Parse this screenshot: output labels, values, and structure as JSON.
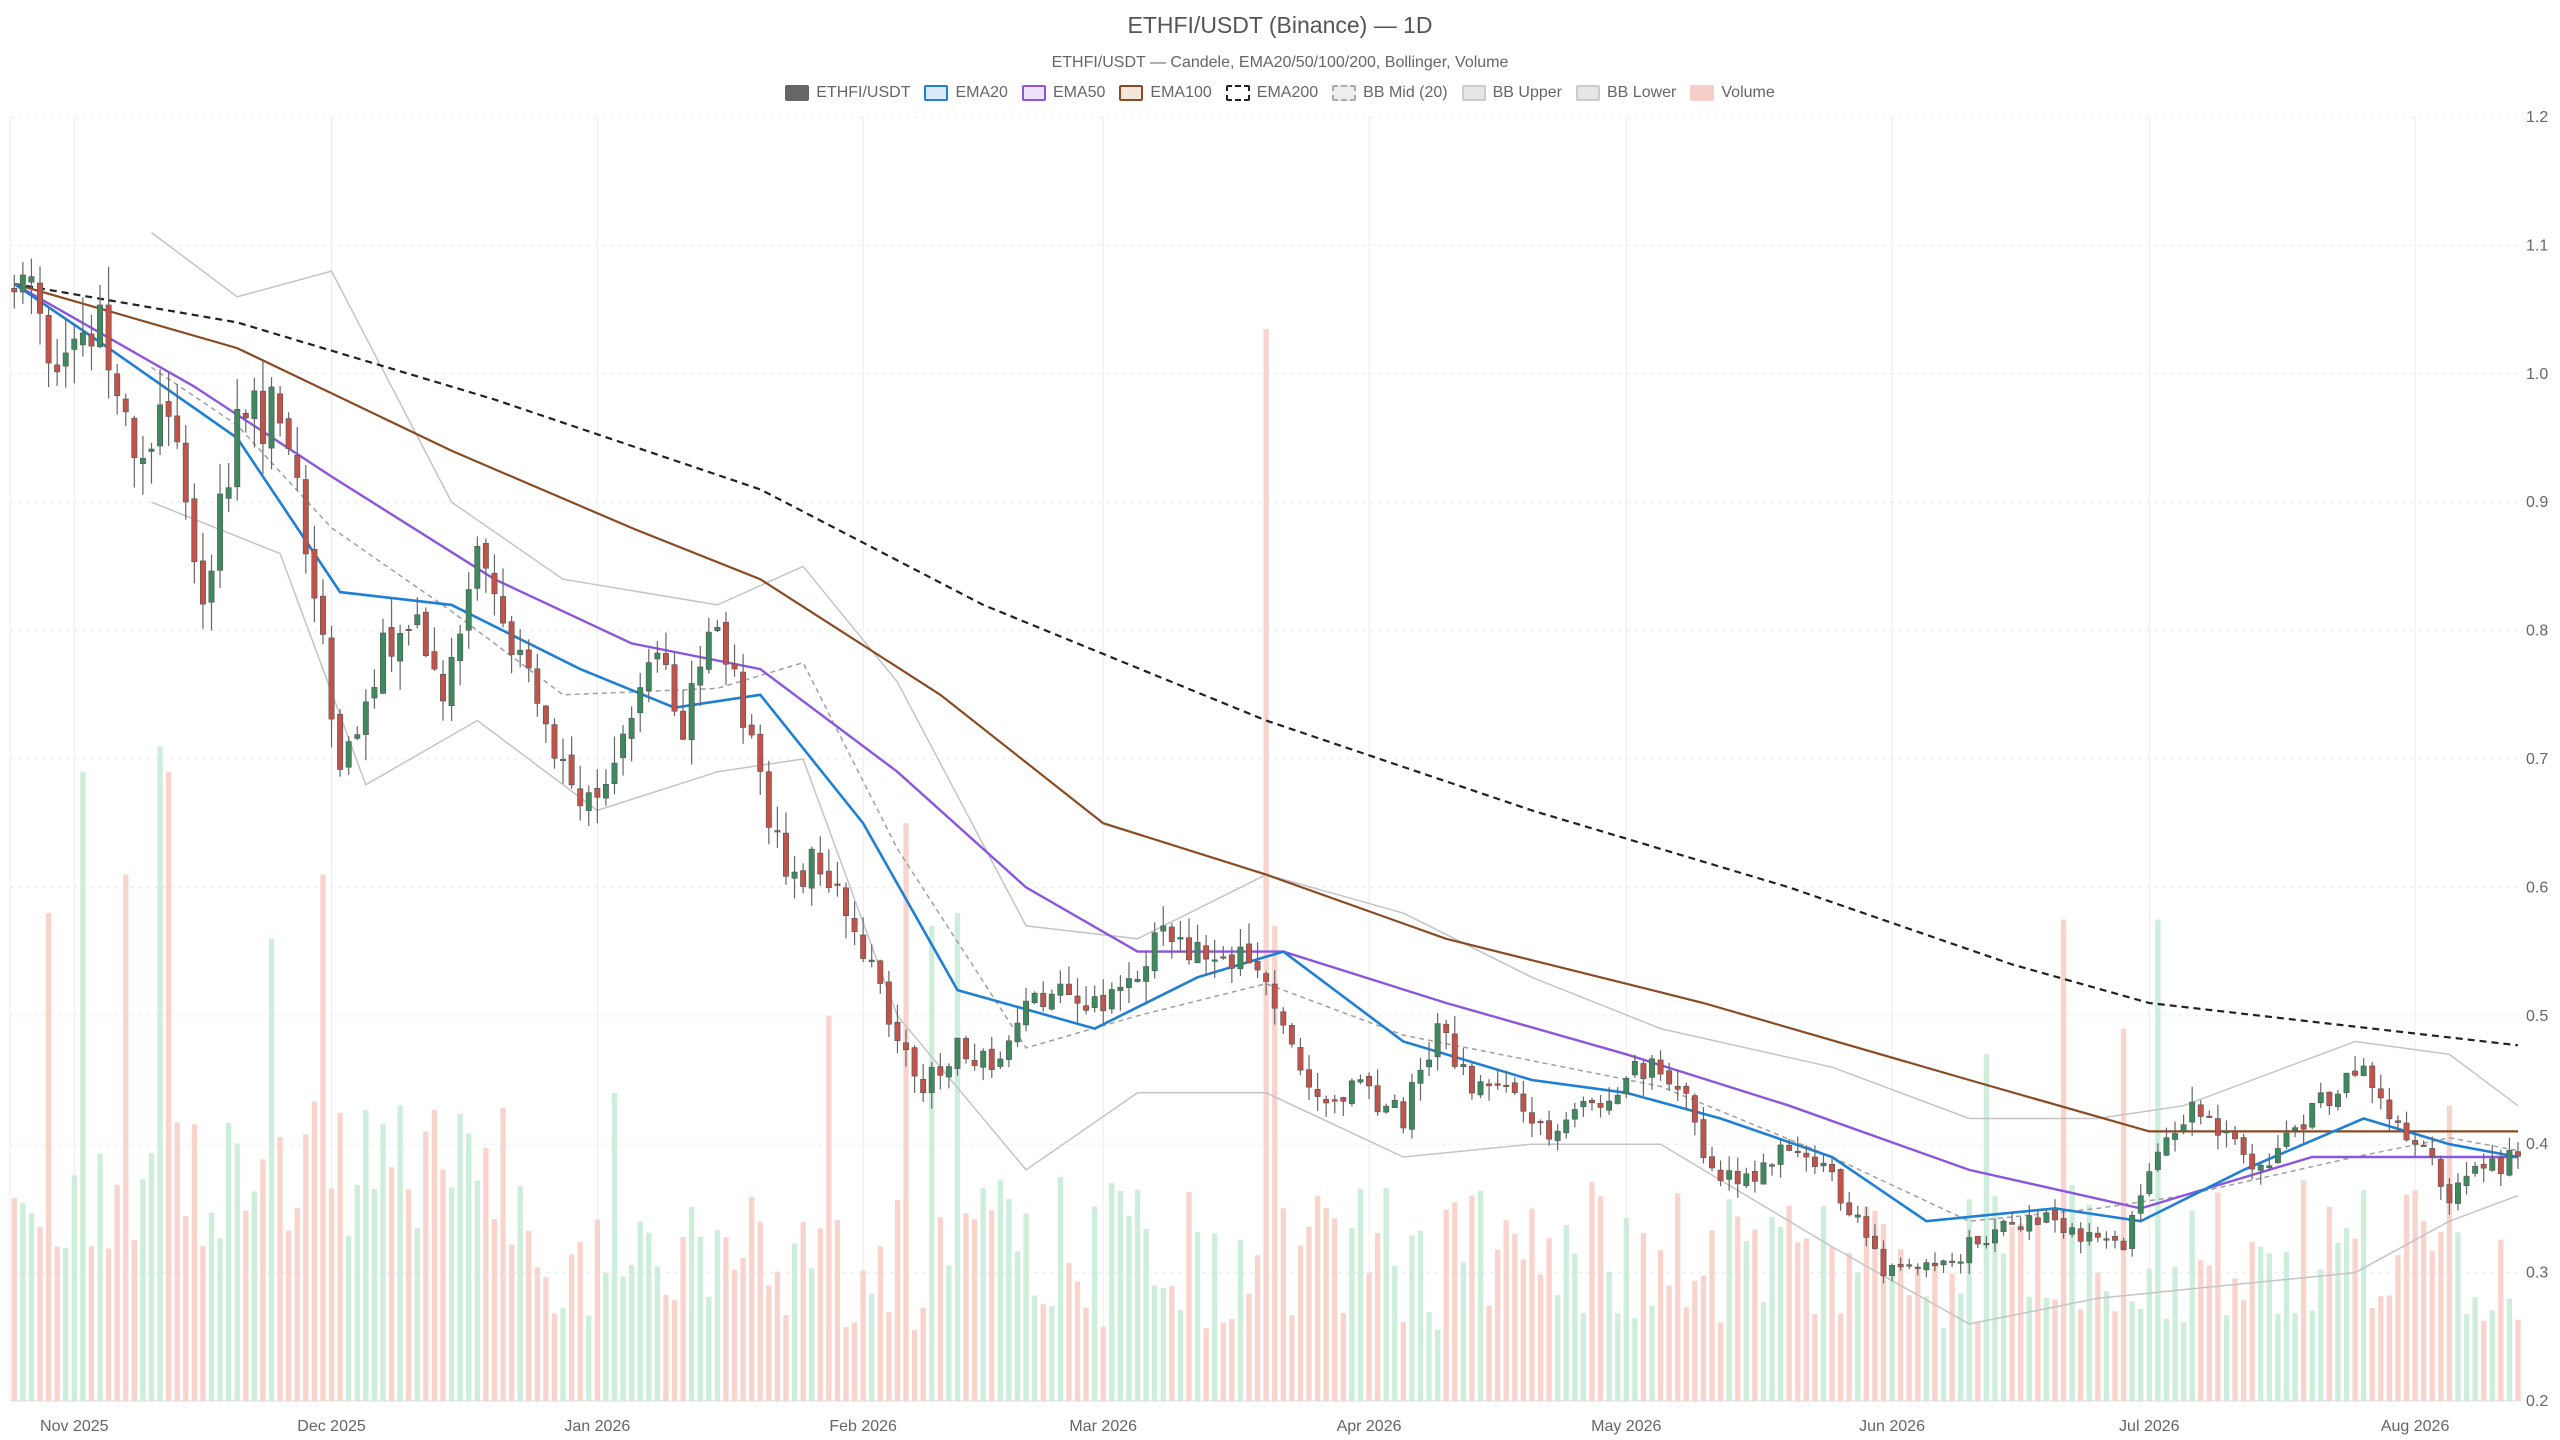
{
  "title": "ETHFI/USDT (Binance) — 1D",
  "subtitle": "ETHFI/USDT — Candele, EMA20/50/100/200, Bollinger, Volume",
  "legend": [
    {
      "label": "ETHFI/USDT",
      "fill": "#666666",
      "border": "#666666",
      "dashed": false
    },
    {
      "label": "EMA20",
      "fill": "#dbeafb",
      "border": "#1e7fd6",
      "dashed": false
    },
    {
      "label": "EMA50",
      "fill": "#ede3fb",
      "border": "#8b55e0",
      "dashed": false
    },
    {
      "label": "EMA100",
      "fill": "#f3e6da",
      "border": "#8a4a22",
      "dashed": false
    },
    {
      "label": "EMA200",
      "fill": "#ffffff",
      "border": "#222222",
      "dashed": true
    },
    {
      "label": "BB Mid (20)",
      "fill": "#eeeeee",
      "border": "#aaaaaa",
      "dashed": true
    },
    {
      "label": "BB Upper",
      "fill": "#e6e6e6",
      "border": "#cccccc",
      "dashed": false
    },
    {
      "label": "BB Lower",
      "fill": "#e6e6e6",
      "border": "#cccccc",
      "dashed": false
    },
    {
      "label": "Volume",
      "fill": "#f8cfc8",
      "border": "#f8cfc8",
      "dashed": false
    }
  ],
  "colors": {
    "up": "#3d8a5f",
    "down": "#c0544a",
    "volume_up": "#c8ecd6",
    "volume_down": "#f8cfc8",
    "ema20": "#1e7fd6",
    "ema50": "#8b55e0",
    "ema100": "#8a4a22",
    "ema200": "#222222",
    "bb": "#c4c4c4",
    "bb_mid": "#a0a0a0",
    "grid": "#ececec"
  },
  "chart_data": {
    "type": "candlestick",
    "title": "ETHFI/USDT (Binance) — 1D",
    "x_start": "2025-10-25",
    "x_end": "2026-08-13",
    "ylim": [
      0.2,
      1.2
    ],
    "y_ticks": [
      0.2,
      0.3,
      0.4,
      0.5,
      0.6,
      0.7,
      0.8,
      0.9,
      1.0,
      1.1,
      1.2
    ],
    "x_ticks": [
      {
        "date": "2025-11-01",
        "label": "Nov 2025"
      },
      {
        "date": "2025-12-01",
        "label": "Dec 2025"
      },
      {
        "date": "2026-01-01",
        "label": "Jan 2026"
      },
      {
        "date": "2026-02-01",
        "label": "Feb 2026"
      },
      {
        "date": "2026-03-01",
        "label": "Mar 2026"
      },
      {
        "date": "2026-04-01",
        "label": "Apr 2026"
      },
      {
        "date": "2026-05-01",
        "label": "May 2026"
      },
      {
        "date": "2026-06-01",
        "label": "Jun 2026"
      },
      {
        "date": "2026-07-01",
        "label": "Jul 2026"
      },
      {
        "date": "2026-08-01",
        "label": "Aug 2026"
      }
    ],
    "price_anchors": [
      [
        "2025-10-25",
        1.07
      ],
      [
        "2025-10-30",
        1.02
      ],
      [
        "2025-11-04",
        1.04
      ],
      [
        "2025-11-08",
        0.95
      ],
      [
        "2025-11-12",
        0.98
      ],
      [
        "2025-11-16",
        0.83
      ],
      [
        "2025-11-20",
        0.96
      ],
      [
        "2025-11-24",
        0.97
      ],
      [
        "2025-11-28",
        0.88
      ],
      [
        "2025-12-02",
        0.69
      ],
      [
        "2025-12-06",
        0.77
      ],
      [
        "2025-12-10",
        0.82
      ],
      [
        "2025-12-14",
        0.76
      ],
      [
        "2025-12-18",
        0.85
      ],
      [
        "2025-12-22",
        0.79
      ],
      [
        "2025-12-26",
        0.72
      ],
      [
        "2025-12-30",
        0.67
      ],
      [
        "2026-01-03",
        0.7
      ],
      [
        "2026-01-07",
        0.79
      ],
      [
        "2026-01-11",
        0.73
      ],
      [
        "2026-01-15",
        0.8
      ],
      [
        "2026-01-19",
        0.72
      ],
      [
        "2026-01-23",
        0.6
      ],
      [
        "2026-01-27",
        0.62
      ],
      [
        "2026-01-31",
        0.58
      ],
      [
        "2026-02-04",
        0.49
      ],
      [
        "2026-02-08",
        0.44
      ],
      [
        "2026-02-12",
        0.48
      ],
      [
        "2026-02-16",
        0.46
      ],
      [
        "2026-02-20",
        0.5
      ],
      [
        "2026-02-24",
        0.52
      ],
      [
        "2026-02-28",
        0.51
      ],
      [
        "2026-03-04",
        0.53
      ],
      [
        "2026-03-08",
        0.57
      ],
      [
        "2026-03-12",
        0.55
      ],
      [
        "2026-03-16",
        0.55
      ],
      [
        "2026-03-20",
        0.53
      ],
      [
        "2026-03-24",
        0.45
      ],
      [
        "2026-03-28",
        0.44
      ],
      [
        "2026-04-01",
        0.44
      ],
      [
        "2026-04-05",
        0.42
      ],
      [
        "2026-04-09",
        0.49
      ],
      [
        "2026-04-13",
        0.45
      ],
      [
        "2026-04-17",
        0.44
      ],
      [
        "2026-04-21",
        0.41
      ],
      [
        "2026-04-25",
        0.42
      ],
      [
        "2026-04-29",
        0.44
      ],
      [
        "2026-05-03",
        0.46
      ],
      [
        "2026-05-07",
        0.45
      ],
      [
        "2026-05-11",
        0.38
      ],
      [
        "2026-05-15",
        0.37
      ],
      [
        "2026-05-19",
        0.39
      ],
      [
        "2026-05-23",
        0.39
      ],
      [
        "2026-05-27",
        0.35
      ],
      [
        "2026-05-31",
        0.3
      ],
      [
        "2026-06-04",
        0.3
      ],
      [
        "2026-06-08",
        0.31
      ],
      [
        "2026-06-12",
        0.33
      ],
      [
        "2026-06-16",
        0.34
      ],
      [
        "2026-06-20",
        0.34
      ],
      [
        "2026-06-24",
        0.33
      ],
      [
        "2026-06-28",
        0.32
      ],
      [
        "2026-07-02",
        0.4
      ],
      [
        "2026-07-06",
        0.43
      ],
      [
        "2026-07-10",
        0.4
      ],
      [
        "2026-07-14",
        0.38
      ],
      [
        "2026-07-18",
        0.41
      ],
      [
        "2026-07-22",
        0.44
      ],
      [
        "2026-07-26",
        0.46
      ],
      [
        "2026-07-30",
        0.41
      ],
      [
        "2026-08-02",
        0.4
      ],
      [
        "2026-08-05",
        0.36
      ],
      [
        "2026-08-08",
        0.38
      ],
      [
        "2026-08-11",
        0.38
      ],
      [
        "2026-08-13",
        0.4
      ]
    ],
    "ema20": [
      [
        "2025-10-25",
        1.07
      ],
      [
        "2025-11-05",
        1.02
      ],
      [
        "2025-11-20",
        0.95
      ],
      [
        "2025-12-02",
        0.83
      ],
      [
        "2025-12-15",
        0.82
      ],
      [
        "2025-12-30",
        0.77
      ],
      [
        "2026-01-10",
        0.74
      ],
      [
        "2026-01-20",
        0.75
      ],
      [
        "2026-02-01",
        0.65
      ],
      [
        "2026-02-12",
        0.52
      ],
      [
        "2026-02-28",
        0.49
      ],
      [
        "2026-03-12",
        0.53
      ],
      [
        "2026-03-22",
        0.55
      ],
      [
        "2026-04-05",
        0.48
      ],
      [
        "2026-04-20",
        0.45
      ],
      [
        "2026-05-01",
        0.44
      ],
      [
        "2026-05-12",
        0.42
      ],
      [
        "2026-05-25",
        0.39
      ],
      [
        "2026-06-05",
        0.34
      ],
      [
        "2026-06-20",
        0.35
      ],
      [
        "2026-06-30",
        0.34
      ],
      [
        "2026-07-12",
        0.38
      ],
      [
        "2026-07-26",
        0.42
      ],
      [
        "2026-08-05",
        0.4
      ],
      [
        "2026-08-13",
        0.39
      ]
    ],
    "ema50": [
      [
        "2025-10-25",
        1.07
      ],
      [
        "2025-11-15",
        0.99
      ],
      [
        "2025-12-01",
        0.92
      ],
      [
        "2025-12-20",
        0.84
      ],
      [
        "2026-01-05",
        0.79
      ],
      [
        "2026-01-20",
        0.77
      ],
      [
        "2026-02-05",
        0.69
      ],
      [
        "2026-02-20",
        0.6
      ],
      [
        "2026-03-05",
        0.55
      ],
      [
        "2026-03-22",
        0.55
      ],
      [
        "2026-04-10",
        0.51
      ],
      [
        "2026-05-01",
        0.47
      ],
      [
        "2026-05-20",
        0.43
      ],
      [
        "2026-06-10",
        0.38
      ],
      [
        "2026-06-30",
        0.35
      ],
      [
        "2026-07-20",
        0.39
      ],
      [
        "2026-08-13",
        0.39
      ]
    ],
    "ema100": [
      [
        "2025-10-25",
        1.07
      ],
      [
        "2025-11-20",
        1.02
      ],
      [
        "2025-12-15",
        0.94
      ],
      [
        "2026-01-05",
        0.88
      ],
      [
        "2026-01-20",
        0.84
      ],
      [
        "2026-02-10",
        0.75
      ],
      [
        "2026-03-01",
        0.65
      ],
      [
        "2026-03-20",
        0.61
      ],
      [
        "2026-04-10",
        0.56
      ],
      [
        "2026-05-10",
        0.51
      ],
      [
        "2026-06-10",
        0.45
      ],
      [
        "2026-07-01",
        0.41
      ],
      [
        "2026-08-13",
        0.41
      ]
    ],
    "ema200": [
      [
        "2025-10-25",
        1.07
      ],
      [
        "2025-11-20",
        1.04
      ],
      [
        "2025-12-20",
        0.98
      ],
      [
        "2026-01-20",
        0.91
      ],
      [
        "2026-02-15",
        0.82
      ],
      [
        "2026-03-20",
        0.73
      ],
      [
        "2026-04-20",
        0.66
      ],
      [
        "2026-05-20",
        0.6
      ],
      [
        "2026-06-15",
        0.54
      ],
      [
        "2026-07-01",
        0.51
      ],
      [
        "2026-08-13",
        0.477
      ]
    ],
    "bb_upper": [
      [
        "2025-11-10",
        1.11
      ],
      [
        "2025-11-20",
        1.06
      ],
      [
        "2025-12-01",
        1.08
      ],
      [
        "2025-12-15",
        0.9
      ],
      [
        "2025-12-28",
        0.84
      ],
      [
        "2026-01-15",
        0.82
      ],
      [
        "2026-01-25",
        0.85
      ],
      [
        "2026-02-05",
        0.76
      ],
      [
        "2026-02-20",
        0.57
      ],
      [
        "2026-03-05",
        0.56
      ],
      [
        "2026-03-20",
        0.61
      ],
      [
        "2026-04-05",
        0.58
      ],
      [
        "2026-04-20",
        0.53
      ],
      [
        "2026-05-05",
        0.49
      ],
      [
        "2026-05-25",
        0.46
      ],
      [
        "2026-06-10",
        0.42
      ],
      [
        "2026-06-25",
        0.42
      ],
      [
        "2026-07-05",
        0.43
      ],
      [
        "2026-07-25",
        0.48
      ],
      [
        "2026-08-05",
        0.47
      ],
      [
        "2026-08-13",
        0.43
      ]
    ],
    "bb_lower": [
      [
        "2025-11-10",
        0.9
      ],
      [
        "2025-11-25",
        0.86
      ],
      [
        "2025-12-05",
        0.68
      ],
      [
        "2025-12-18",
        0.73
      ],
      [
        "2026-01-01",
        0.66
      ],
      [
        "2026-01-15",
        0.69
      ],
      [
        "2026-01-25",
        0.7
      ],
      [
        "2026-02-05",
        0.5
      ],
      [
        "2026-02-20",
        0.38
      ],
      [
        "2026-03-05",
        0.44
      ],
      [
        "2026-03-20",
        0.44
      ],
      [
        "2026-04-05",
        0.39
      ],
      [
        "2026-04-20",
        0.4
      ],
      [
        "2026-05-05",
        0.4
      ],
      [
        "2026-05-25",
        0.32
      ],
      [
        "2026-06-10",
        0.26
      ],
      [
        "2026-06-25",
        0.28
      ],
      [
        "2026-07-10",
        0.29
      ],
      [
        "2026-07-25",
        0.3
      ],
      [
        "2026-08-05",
        0.34
      ],
      [
        "2026-08-13",
        0.36
      ]
    ],
    "volume_spikes": [
      [
        "2025-10-29",
        0.58
      ],
      [
        "2025-11-02",
        0.69
      ],
      [
        "2025-11-07",
        0.61
      ],
      [
        "2025-11-11",
        0.71
      ],
      [
        "2025-11-12",
        0.69
      ],
      [
        "2025-11-24",
        0.56
      ],
      [
        "2025-11-30",
        0.61
      ],
      [
        "2026-01-03",
        0.44
      ],
      [
        "2026-01-28",
        0.5
      ],
      [
        "2026-02-06",
        0.65
      ],
      [
        "2026-02-09",
        0.57
      ],
      [
        "2026-02-12",
        0.58
      ],
      [
        "2026-03-20",
        1.035
      ],
      [
        "2026-03-21",
        0.57
      ],
      [
        "2026-06-12",
        0.47
      ],
      [
        "2026-06-21",
        0.575
      ],
      [
        "2026-06-28",
        0.49
      ],
      [
        "2026-07-02",
        0.575
      ],
      [
        "2026-08-05",
        0.43
      ]
    ]
  }
}
